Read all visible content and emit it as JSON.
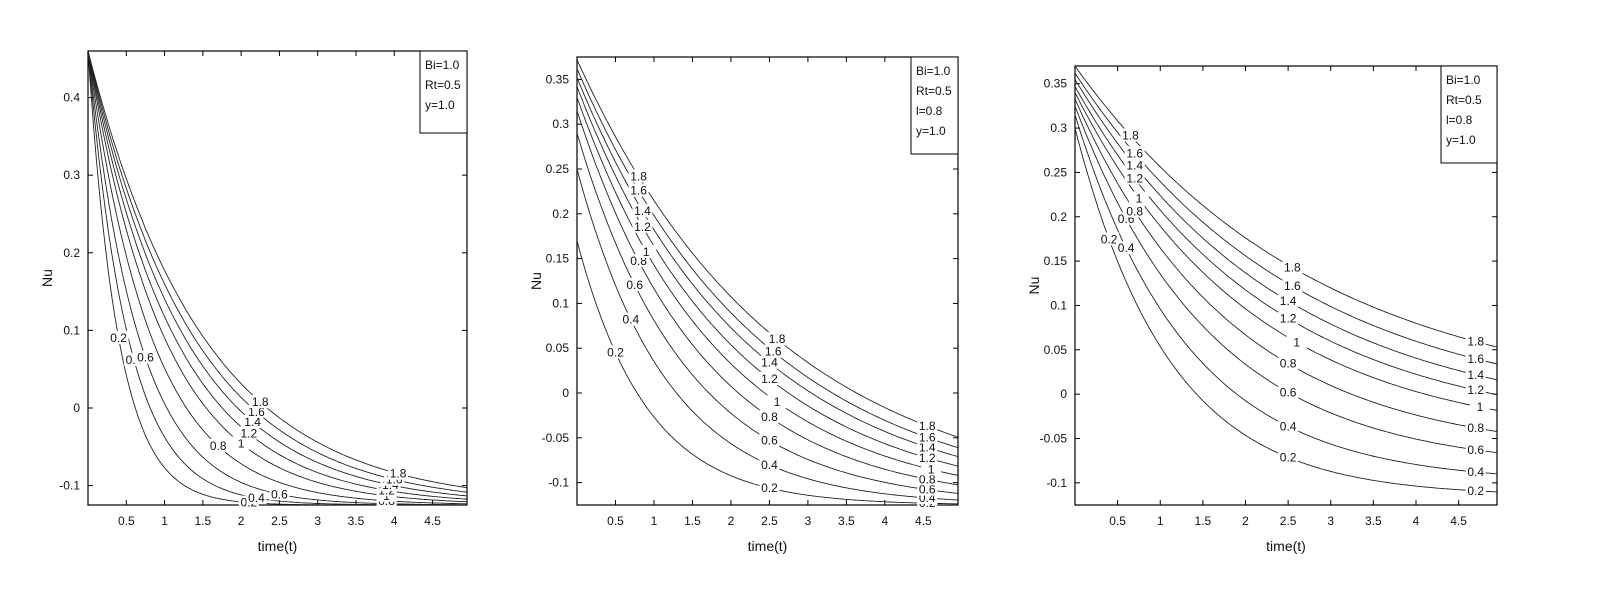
{
  "chart_data": [
    {
      "type": "line",
      "subtype": "contour",
      "xlabel": "time(t)",
      "ylabel": "Nu",
      "xlim": [
        0,
        4.95
      ],
      "ylim": [
        -0.125,
        0.46
      ],
      "xticks": [
        0.5,
        1,
        1.5,
        2,
        2.5,
        3,
        3.5,
        4,
        4.5
      ],
      "xtick_labels": [
        "0.5",
        "1",
        "1.5",
        "2",
        "2.5",
        "3",
        "3.5",
        "4",
        "4.5"
      ],
      "yticks": [
        -0.1,
        0,
        0.1,
        0.2,
        0.3,
        0.4
      ],
      "ytick_labels": [
        "-0.1",
        "0",
        "0.1",
        "0.2",
        "0.3",
        "0.4"
      ],
      "legend": [
        "Bi=1.0",
        "Rt=0.5",
        "y=1.0"
      ],
      "legend_position": "top-right",
      "grid": false,
      "floor": -0.125,
      "series": [
        {
          "label": "0.2",
          "y0": 0.46,
          "k": 2.5
        },
        {
          "label": "0.4",
          "y0": 0.46,
          "k": 1.9
        },
        {
          "label": "0.6",
          "y0": 0.46,
          "k": 1.5
        },
        {
          "label": "0.8",
          "y0": 0.46,
          "k": 1.2
        },
        {
          "label": "1",
          "y0": 0.46,
          "k": 1.0
        },
        {
          "label": "1.2",
          "y0": 0.46,
          "k": 0.88
        },
        {
          "label": "1.4",
          "y0": 0.46,
          "k": 0.79
        },
        {
          "label": "1.6",
          "y0": 0.46,
          "k": 0.72
        },
        {
          "label": "1.8",
          "y0": 0.46,
          "k": 0.66
        }
      ],
      "mid_label_x": [
        0.4,
        0.6,
        0.75,
        1.7,
        2.0,
        2.1,
        2.15,
        2.2,
        2.25
      ],
      "end_label_x": [
        2.1,
        2.2,
        2.5,
        3.9,
        3.9,
        3.9,
        3.95,
        4.0,
        4.05
      ]
    },
    {
      "type": "line",
      "subtype": "contour",
      "xlabel": "time(t)",
      "ylabel": "Nu",
      "xlim": [
        0,
        4.95
      ],
      "ylim": [
        -0.125,
        0.375
      ],
      "xticks": [
        0.5,
        1,
        1.5,
        2,
        2.5,
        3,
        3.5,
        4,
        4.5
      ],
      "xtick_labels": [
        "0.5",
        "1",
        "1.5",
        "2",
        "2.5",
        "3",
        "3.5",
        "4",
        "4.5"
      ],
      "yticks": [
        -0.1,
        -0.05,
        0,
        0.05,
        0.1,
        0.15,
        0.2,
        0.25,
        0.3,
        0.35
      ],
      "ytick_labels": [
        "-0.1",
        "-0.05",
        "0",
        "0.05",
        "0.1",
        "0.15",
        "0.2",
        "0.25",
        "0.3",
        "0.35"
      ],
      "legend": [
        "Bi=1.0",
        "Rt=0.5",
        "l=0.8",
        "y=1.0"
      ],
      "legend_position": "top-right",
      "grid": false,
      "floor": -0.125,
      "series": [
        {
          "label": "0.2",
          "y0": 0.17,
          "k": 1.1
        },
        {
          "label": "0.4",
          "y0": 0.25,
          "k": 0.85
        },
        {
          "label": "0.6",
          "y0": 0.29,
          "k": 0.7
        },
        {
          "label": "0.8",
          "y0": 0.315,
          "k": 0.6
        },
        {
          "label": "1",
          "y0": 0.33,
          "k": 0.53
        },
        {
          "label": "1.2",
          "y0": 0.342,
          "k": 0.48
        },
        {
          "label": "1.4",
          "y0": 0.352,
          "k": 0.44
        },
        {
          "label": "1.6",
          "y0": 0.362,
          "k": 0.41
        },
        {
          "label": "1.8",
          "y0": 0.372,
          "k": 0.38
        }
      ],
      "mid_label_x": [
        0.5,
        0.7,
        0.75,
        0.8,
        0.9,
        0.85,
        0.85,
        0.8,
        0.8
      ],
      "end_label_x": [
        2.5,
        2.5,
        2.5,
        2.5,
        2.6,
        2.5,
        2.5,
        2.55,
        2.6
      ],
      "far_label_x": [
        4.55,
        4.55,
        4.55,
        4.55,
        4.6,
        4.55,
        4.55,
        4.55,
        4.55
      ]
    },
    {
      "type": "line",
      "subtype": "contour",
      "xlabel": "time(t)",
      "ylabel": "Nu",
      "xlim": [
        0,
        4.95
      ],
      "ylim": [
        -0.125,
        0.37
      ],
      "xticks": [
        0.5,
        1,
        1.5,
        2,
        2.5,
        3,
        3.5,
        4,
        4.5
      ],
      "xtick_labels": [
        "0.5",
        "1",
        "1.5",
        "2",
        "2.5",
        "3",
        "3.5",
        "4",
        "4.5"
      ],
      "yticks": [
        -0.1,
        -0.05,
        0,
        0.05,
        0.1,
        0.15,
        0.2,
        0.25,
        0.3,
        0.35
      ],
      "ytick_labels": [
        "-0.1",
        "-0.05",
        "0",
        "0.05",
        "0.1",
        "0.15",
        "0.2",
        "0.25",
        "0.3",
        "0.35"
      ],
      "legend": [
        "Bi=1.0",
        "Rt=0.5",
        "l=0.8",
        "y=1.0"
      ],
      "legend_position": "top-right",
      "grid": false,
      "floor": -0.125,
      "series": [
        {
          "label": "0.2",
          "y0": 0.3,
          "k": 0.9,
          "asym": -0.115
        },
        {
          "label": "0.4",
          "y0": 0.315,
          "k": 0.75,
          "asym": -0.1
        },
        {
          "label": "0.6",
          "y0": 0.325,
          "k": 0.62,
          "asym": -0.085
        },
        {
          "label": "0.8",
          "y0": 0.333,
          "k": 0.54,
          "asym": -0.07
        },
        {
          "label": "1",
          "y0": 0.34,
          "k": 0.48,
          "asym": -0.055
        },
        {
          "label": "1.2",
          "y0": 0.347,
          "k": 0.44,
          "asym": -0.045
        },
        {
          "label": "1.4",
          "y0": 0.355,
          "k": 0.41,
          "asym": -0.035
        },
        {
          "label": "1.6",
          "y0": 0.362,
          "k": 0.38,
          "asym": -0.025
        },
        {
          "label": "1.8",
          "y0": 0.37,
          "k": 0.35,
          "asym": -0.015
        }
      ],
      "mid_label_x": [
        0.4,
        0.6,
        0.6,
        0.7,
        0.75,
        0.7,
        0.7,
        0.7,
        0.65
      ],
      "end_label_x": [
        2.5,
        2.5,
        2.5,
        2.5,
        2.6,
        2.5,
        2.5,
        2.55,
        2.55
      ],
      "far_label_x": [
        4.7,
        4.7,
        4.7,
        4.7,
        4.75,
        4.7,
        4.7,
        4.7,
        4.7
      ]
    }
  ]
}
